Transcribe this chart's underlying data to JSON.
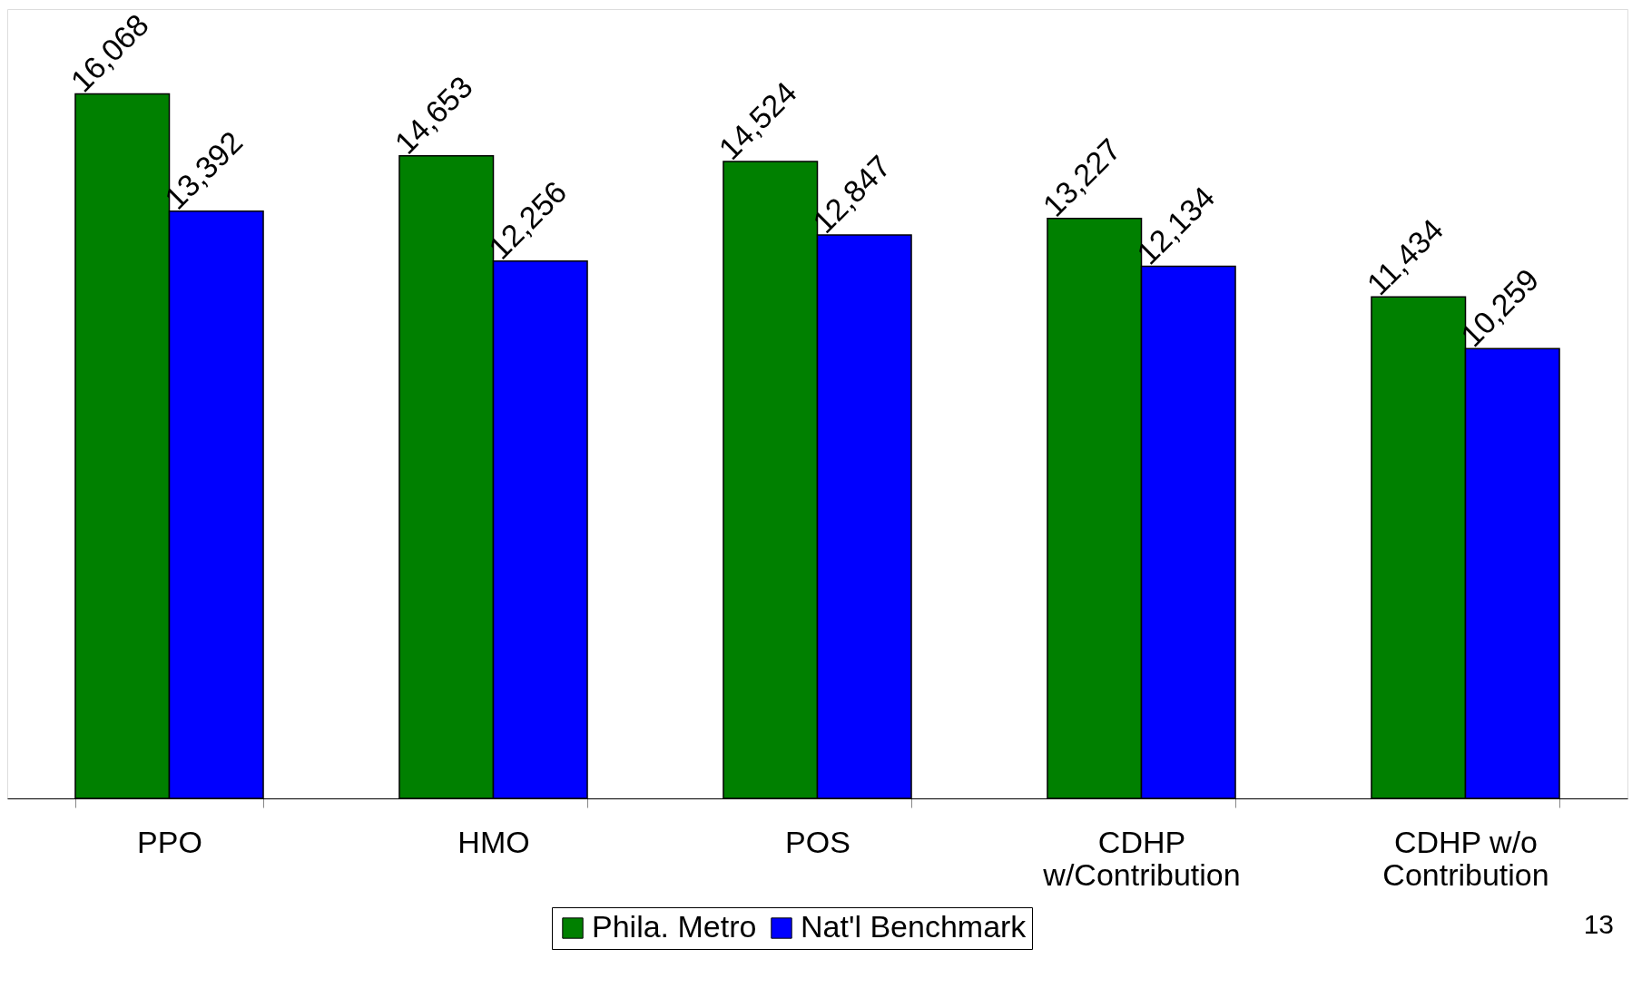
{
  "chart_data": {
    "type": "bar",
    "categories": [
      "PPO",
      "HMO",
      "POS",
      "CDHP w/Contribution",
      "CDHP w/o Contribution"
    ],
    "series": [
      {
        "name": "Phila. Metro",
        "color": "#008000",
        "values": [
          16068,
          14653,
          14524,
          13227,
          11434
        ],
        "value_labels": [
          "16,068",
          "14,653",
          "14,524",
          "13,227",
          "11,434"
        ]
      },
      {
        "name": "Nat'l Benchmark",
        "color": "#0000ff",
        "values": [
          13392,
          12256,
          12847,
          12134,
          10259
        ],
        "value_labels": [
          "13,392",
          "12,256",
          "12,847",
          "12,134",
          "10,259"
        ]
      }
    ],
    "legend": "bottom",
    "annotations": [
      "13"
    ]
  }
}
